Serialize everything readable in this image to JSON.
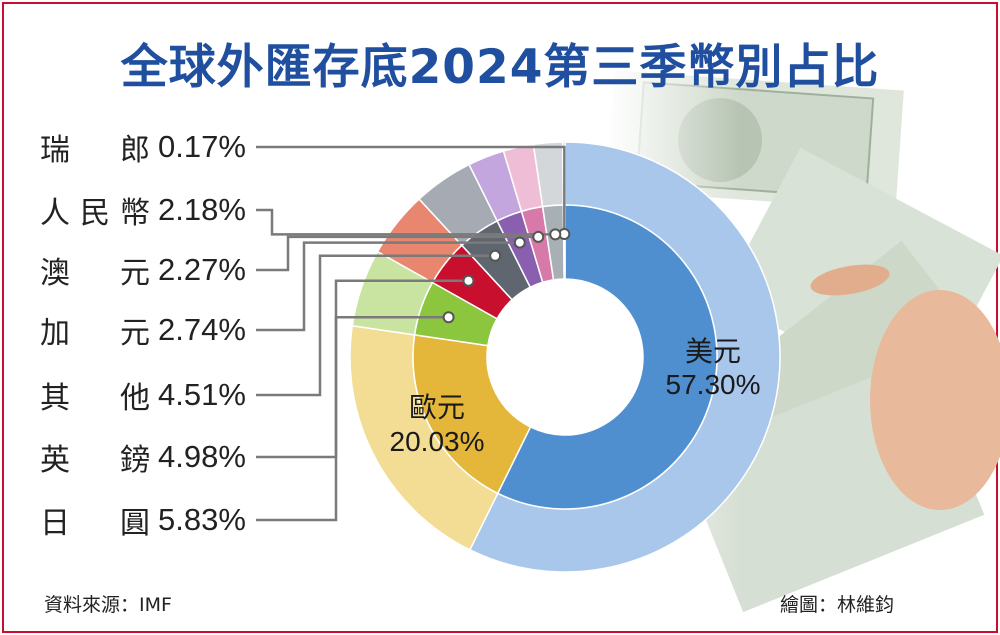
{
  "title": "全球外匯存底2024第三季幣別占比",
  "chart_data": {
    "type": "pie",
    "title": "全球外匯存底2024第三季幣別占比",
    "slices": [
      {
        "label": "美元",
        "value": 57.3,
        "display": "57.30%",
        "color": "#4f8fd0",
        "inner": "#a9c7ea"
      },
      {
        "label": "歐元",
        "value": 20.03,
        "display": "20.03%",
        "color": "#e4b63a",
        "inner": "#f3dc94"
      },
      {
        "label": "日圓",
        "value": 5.83,
        "display": "5.83%",
        "color": "#8cc63f",
        "inner": "#c9e3a0"
      },
      {
        "label": "英鎊",
        "value": 4.98,
        "display": "4.98%",
        "color": "#c8102e",
        "inner": "#e9866f"
      },
      {
        "label": "其他",
        "value": 4.51,
        "display": "4.51%",
        "color": "#5f6670",
        "inner": "#a6abb3"
      },
      {
        "label": "加元",
        "value": 2.74,
        "display": "2.74%",
        "color": "#8a5fb0",
        "inner": "#c4a6de"
      },
      {
        "label": "澳元",
        "value": 2.27,
        "display": "2.27%",
        "color": "#d87aa9",
        "inner": "#f0bdd6"
      },
      {
        "label": "人民幣",
        "value": 2.18,
        "display": "2.18%",
        "color": "#a9b0b5",
        "inner": "#d3d7da"
      },
      {
        "label": "瑞郎",
        "value": 0.17,
        "display": "0.17%",
        "color": "#7f8890",
        "inner": "#c0c5ca"
      }
    ]
  },
  "legend": [
    {
      "name": "瑞　郎",
      "value": "0.17%"
    },
    {
      "name": "人民幣",
      "value": "2.18%"
    },
    {
      "name": "澳　元",
      "value": "2.27%"
    },
    {
      "name": "加　元",
      "value": "2.74%"
    },
    {
      "name": "其　他",
      "value": "4.51%"
    },
    {
      "name": "英　鎊",
      "value": "4.98%"
    },
    {
      "name": "日　圓",
      "value": "5.83%"
    }
  ],
  "labels": {
    "usd_name": "美元",
    "usd_value": "57.30%",
    "eur_name": "歐元",
    "eur_value": "20.03%"
  },
  "footer": {
    "source": "資料來源：IMF",
    "credit": "繪圖：林維鈞"
  }
}
